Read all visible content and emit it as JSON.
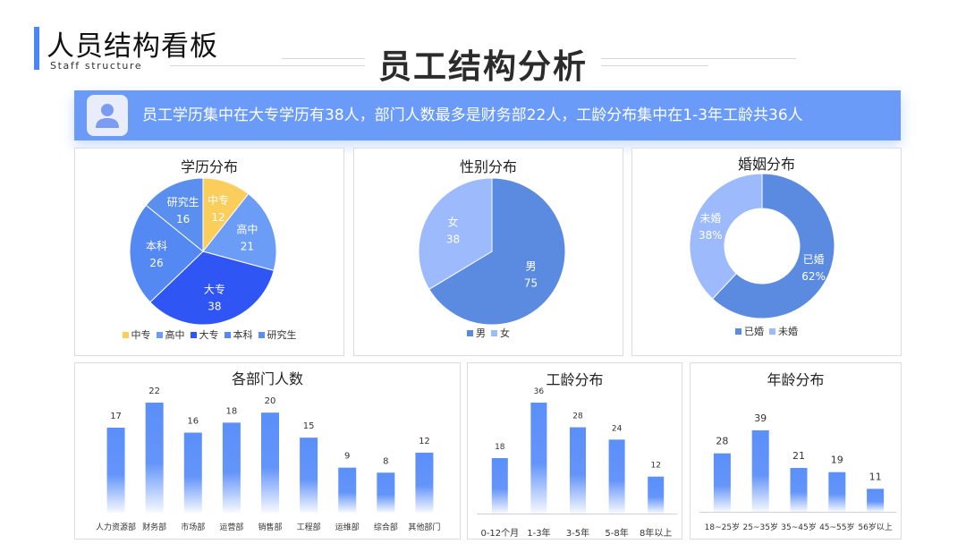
{
  "header": {
    "brand_title": "人员结构看板",
    "brand_subtitle": "Staff structure",
    "main_title": "员工结构分析"
  },
  "banner": {
    "avatar_icon": "user-avatar-icon",
    "text": "员工学历集中在大专学历有38人，部门人数最多是财务部22人，工龄分布集中在1-3年工龄共36人"
  },
  "colors": {
    "accent": "#4a86f7",
    "banner": "#6a9bf9",
    "bar": "#5b8ff9"
  },
  "chart_data": [
    {
      "id": "education",
      "type": "pie",
      "title": "学历分布",
      "categories": [
        "中专",
        "高中",
        "大专",
        "本科",
        "研究生"
      ],
      "values": [
        12,
        21,
        38,
        26,
        16
      ],
      "colors": [
        "#fbcd5b",
        "#6b9cf6",
        "#2f56f5",
        "#5488f2",
        "#5a8ff0"
      ],
      "legend": "bottom"
    },
    {
      "id": "gender",
      "type": "pie",
      "title": "性别分布",
      "categories": [
        "男",
        "女"
      ],
      "values": [
        75,
        38
      ],
      "colors": [
        "#5b8be0",
        "#9cbafc"
      ],
      "legend": "bottom"
    },
    {
      "id": "marriage",
      "type": "pie",
      "donut": true,
      "title": "婚姻分布",
      "categories": [
        "已婚",
        "未婚"
      ],
      "values": [
        62,
        38
      ],
      "value_labels": [
        "62%",
        "38%"
      ],
      "colors": [
        "#5b8be0",
        "#9cbafc"
      ],
      "legend": "bottom"
    },
    {
      "id": "department",
      "type": "bar",
      "title": "各部门人数",
      "categories": [
        "人力资源部",
        "财务部",
        "市场部",
        "运营部",
        "销售部",
        "工程部",
        "运维部",
        "综合部",
        "其他部门"
      ],
      "values": [
        17,
        22,
        16,
        18,
        20,
        15,
        9,
        8,
        12
      ],
      "ylim": [
        0,
        22
      ]
    },
    {
      "id": "tenure",
      "type": "bar",
      "title": "工龄分布",
      "categories": [
        "0-12个月",
        "1-3年",
        "3-5年",
        "5-8年",
        "8年以上"
      ],
      "values": [
        18,
        36,
        28,
        24,
        12
      ],
      "ylim": [
        0,
        36
      ]
    },
    {
      "id": "age",
      "type": "bar",
      "title": "年龄分布",
      "categories": [
        "18~25岁",
        "25~35岁",
        "35~45岁",
        "45~55岁",
        "56岁以上"
      ],
      "values": [
        28,
        39,
        21,
        19,
        11
      ],
      "ylim": [
        0,
        39
      ]
    }
  ]
}
